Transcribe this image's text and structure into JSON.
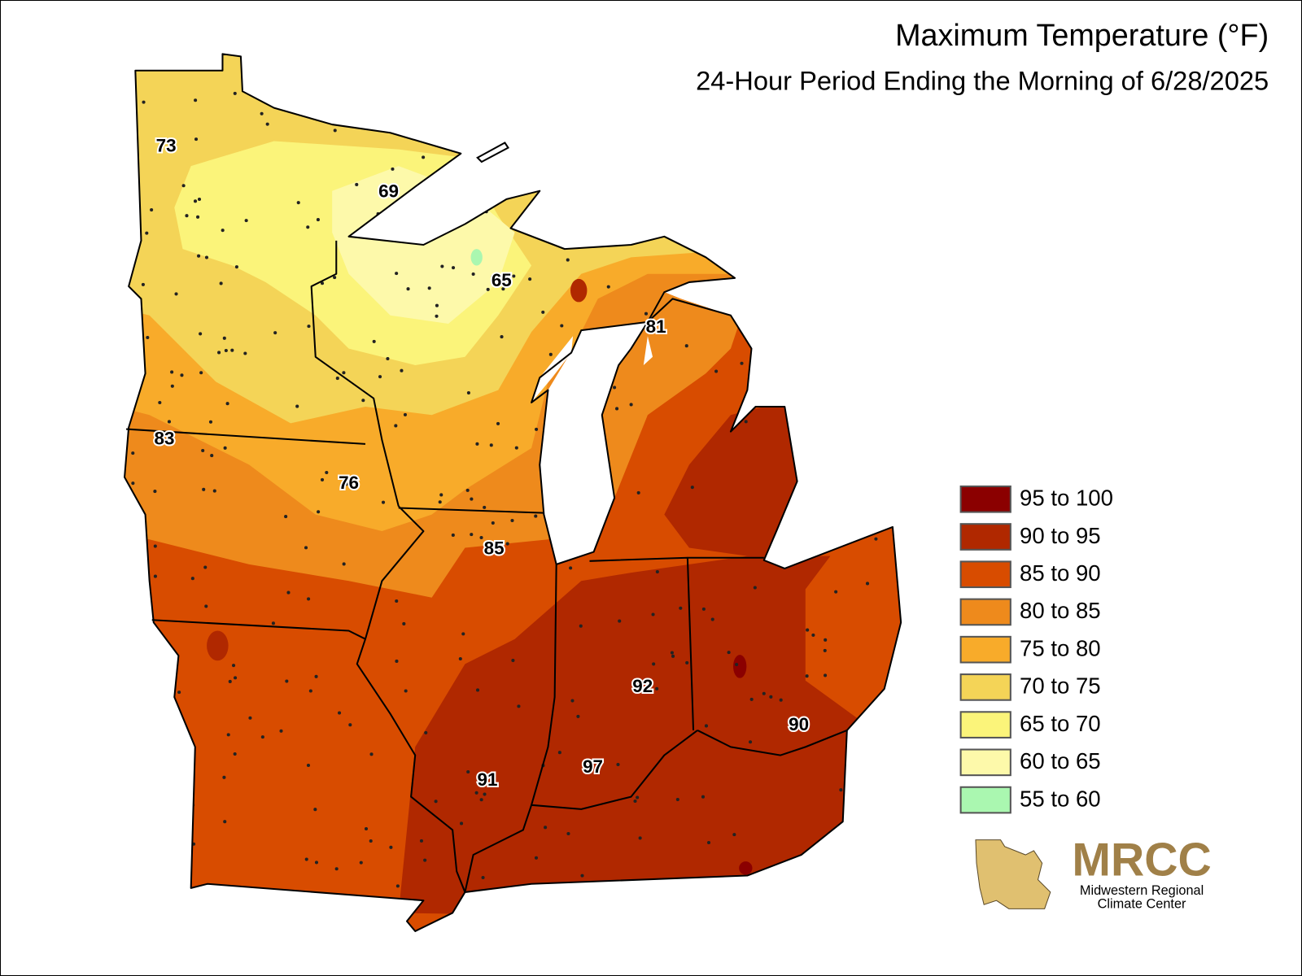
{
  "header": {
    "title": "Maximum Temperature (°F)",
    "subtitle": "24-Hour Period Ending the Morning of 6/28/2025"
  },
  "stations": [
    73,
    69,
    65,
    81,
    83,
    76,
    85,
    92,
    90,
    91,
    97
  ],
  "legend": [
    {
      "label": "95 to 100",
      "color": "#8b0000"
    },
    {
      "label": "90 to 95",
      "color": "#b02800"
    },
    {
      "label": "85 to 90",
      "color": "#d84c00"
    },
    {
      "label": "80 to 85",
      "color": "#ee8a1c"
    },
    {
      "label": "75 to 80",
      "color": "#f8ab2a"
    },
    {
      "label": "70 to 75",
      "color": "#f4d457"
    },
    {
      "label": "65 to 70",
      "color": "#fbf47a"
    },
    {
      "label": "60 to 65",
      "color": "#fdf9aa"
    },
    {
      "label": "55 to 60",
      "color": "#aaf7b0"
    }
  ],
  "logo": {
    "acronym": "MRCC",
    "line1": "Midwestern Regional",
    "line2": "Climate Center"
  }
}
